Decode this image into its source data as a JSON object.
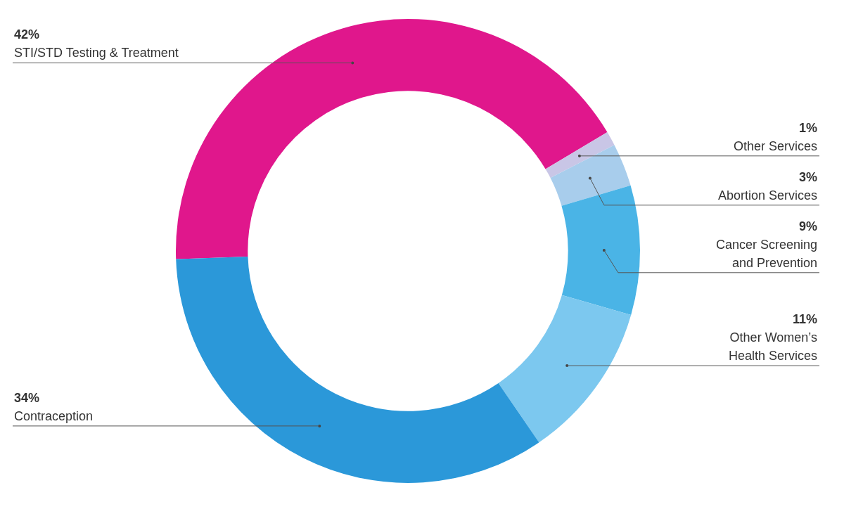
{
  "chart_data": {
    "type": "donut",
    "categories": [
      "STI/STD Testing & Treatment",
      "Other Services",
      "Abortion Services",
      "Cancer Screening and Prevention",
      "Other Women’s Health Services",
      "Contraception"
    ],
    "values": [
      42,
      1,
      3,
      9,
      11,
      34
    ],
    "colors": [
      "#e0178c",
      "#c9c6e6",
      "#a8cdec",
      "#4ab4e6",
      "#7cc8ef",
      "#2b98d9"
    ],
    "value_labels": [
      "42%",
      "1%",
      "3%",
      "9%",
      "11%",
      "34%"
    ]
  }
}
